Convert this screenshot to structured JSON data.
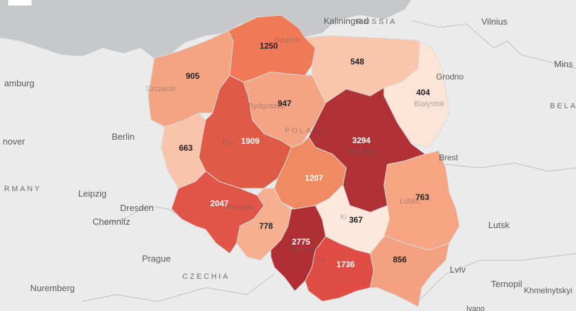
{
  "cities": {
    "kaliningrad": "Kaliningrad",
    "vilnius": "Vilnius",
    "minsk": "Mins",
    "hamburg": "amburg",
    "berlin": "Berlin",
    "hanover": "nover",
    "leipzig": "Leipzig",
    "dresden": "Dresden",
    "chemnitz": "Chemnitz",
    "prague": "Prague",
    "nuremberg": "Nuremberg",
    "lutsk": "Lutsk",
    "lviv": "Lviv",
    "ternopil": "Ternopil",
    "khmelnytskyi": "Khmelnytskyi",
    "ivano": "Ivano"
  },
  "countries": {
    "russia": "RUSSIA",
    "belarus": "BELA",
    "germany": "RMANY",
    "czechia": "CZECHIA",
    "poland": "POLAND"
  },
  "ghost_cities": {
    "gdansk": "Gdańsk",
    "szczecin": "Szczecin",
    "bydgoszcz": "Bydgoszcz",
    "poznan": "Po",
    "warsaw": "Warsaw",
    "wroclaw": "Wrocław",
    "katowice": "Katowice",
    "krakow": "Cra",
    "kielce": "Ki",
    "lublin": "Lublin",
    "grodno": "Grodno",
    "bialystok": "Białystok",
    "brest": "Brest"
  },
  "regions": [
    {
      "id": "zachodniopomorskie",
      "value": "905",
      "color": "#f4a383"
    },
    {
      "id": "pomorskie",
      "value": "1250",
      "color": "#f07a57"
    },
    {
      "id": "warminsko-mazurskie",
      "value": "548",
      "color": "#f9c6ac"
    },
    {
      "id": "podlaskie",
      "value": "404",
      "color": "#fce4d6"
    },
    {
      "id": "lubuskie",
      "value": "663",
      "color": "#f9c4ab"
    },
    {
      "id": "wielkopolskie",
      "value": "1909",
      "color": "#e05a48"
    },
    {
      "id": "kujawsko-pomorskie",
      "value": "947",
      "color": "#f4a383"
    },
    {
      "id": "mazowieckie",
      "value": "3294",
      "color": "#b03237"
    },
    {
      "id": "lodzkie",
      "value": "1207",
      "color": "#f08a62"
    },
    {
      "id": "dolnoslaskie",
      "value": "2047",
      "color": "#e05548"
    },
    {
      "id": "opolskie",
      "value": "778",
      "color": "#f6b090"
    },
    {
      "id": "slaskie",
      "value": "2775",
      "color": "#b02f35"
    },
    {
      "id": "malopolskie",
      "value": "1736",
      "color": "#df4d45"
    },
    {
      "id": "swietokrzyskie",
      "value": "367",
      "color": "#fde8dc"
    },
    {
      "id": "lubelskie",
      "value": "763",
      "color": "#f6a482"
    },
    {
      "id": "podkarpackie",
      "value": "856",
      "color": "#f4a181"
    }
  ]
}
